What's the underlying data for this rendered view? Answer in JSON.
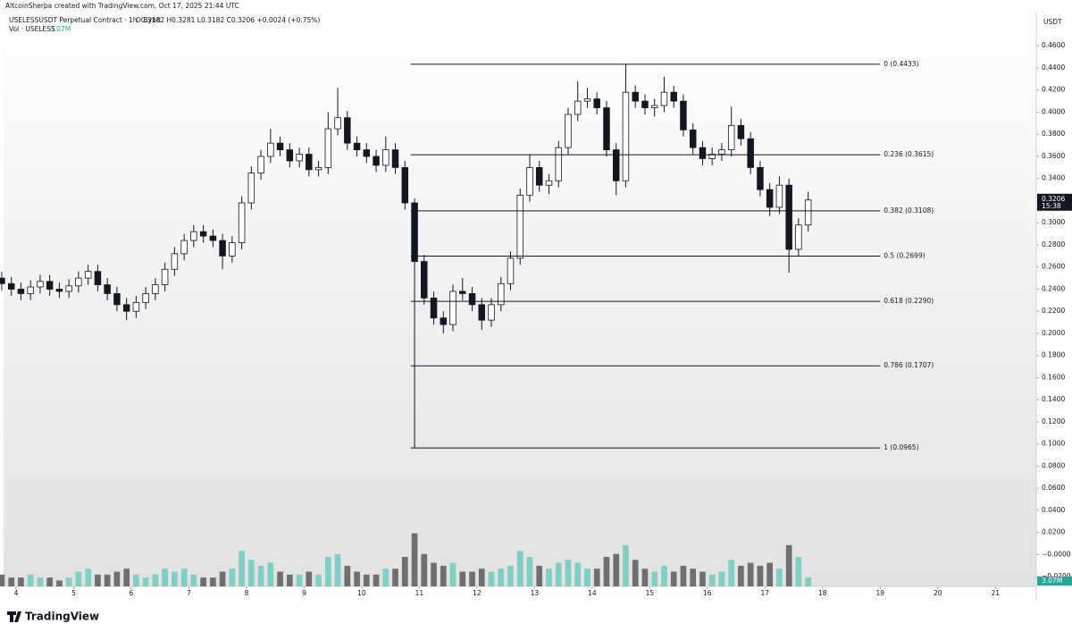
{
  "header": {
    "watermark": "AltcoinSherpa created with TradingView.com, Oct 17, 2025 21:44 UTC",
    "symbol": "USELESSUSDT Perpetual Contract · 1h · Bybit",
    "ohlc": "O0.3182 H0.3281 L0.3182 C0.3206 +0.0024 (+0.75%)",
    "volume_title": "Vol · USELESS"
  },
  "footer": {
    "logo": "TradingView"
  },
  "chart_data": {
    "type": "candlestick",
    "axis_title": "USDT",
    "countdown": "15:38",
    "volume_label": "3.07M",
    "x": [
      3.75,
      3.917,
      4.083,
      4.25,
      4.417,
      4.583,
      4.75,
      4.917,
      5.083,
      5.25,
      5.417,
      5.583,
      5.75,
      5.917,
      6.083,
      6.25,
      6.417,
      6.583,
      6.75,
      6.917,
      7.083,
      7.25,
      7.417,
      7.583,
      7.75,
      7.917,
      8.083,
      8.25,
      8.417,
      8.583,
      8.75,
      8.917,
      9.083,
      9.25,
      9.417,
      9.583,
      9.75,
      9.917,
      10.083,
      10.25,
      10.417,
      10.583,
      10.75,
      10.917,
      11.083,
      11.25,
      11.417,
      11.583,
      11.75,
      11.917,
      12.083,
      12.25,
      12.417,
      12.583,
      12.75,
      12.917,
      13.083,
      13.25,
      13.417,
      13.583,
      13.75,
      13.917,
      14.083,
      14.25,
      14.417,
      14.583,
      14.75,
      14.917,
      15.083,
      15.25,
      15.417,
      15.583,
      15.75,
      15.917,
      16.083,
      16.25,
      16.417,
      16.583,
      16.75,
      16.917,
      17.083,
      17.25,
      17.417,
      17.583,
      17.75
    ],
    "open": [
      0.25,
      0.245,
      0.24,
      0.236,
      0.242,
      0.247,
      0.24,
      0.238,
      0.243,
      0.25,
      0.256,
      0.244,
      0.236,
      0.226,
      0.22,
      0.228,
      0.236,
      0.244,
      0.258,
      0.272,
      0.284,
      0.292,
      0.288,
      0.284,
      0.27,
      0.282,
      0.318,
      0.345,
      0.36,
      0.372,
      0.366,
      0.356,
      0.362,
      0.348,
      0.35,
      0.385,
      0.395,
      0.372,
      0.366,
      0.36,
      0.352,
      0.366,
      0.35,
      0.318,
      0.265,
      0.232,
      0.214,
      0.208,
      0.238,
      0.236,
      0.226,
      0.212,
      0.226,
      0.245,
      0.268,
      0.325,
      0.35,
      0.334,
      0.338,
      0.368,
      0.398,
      0.41,
      0.412,
      0.404,
      0.366,
      0.338,
      0.418,
      0.41,
      0.404,
      0.406,
      0.418,
      0.41,
      0.384,
      0.368,
      0.358,
      0.362,
      0.366,
      0.388,
      0.376,
      0.35,
      0.33,
      0.314,
      0.334,
      0.276,
      0.298
    ],
    "high": [
      0.256,
      0.251,
      0.246,
      0.248,
      0.253,
      0.253,
      0.246,
      0.249,
      0.256,
      0.262,
      0.262,
      0.25,
      0.242,
      0.232,
      0.234,
      0.242,
      0.25,
      0.264,
      0.278,
      0.29,
      0.298,
      0.298,
      0.294,
      0.29,
      0.288,
      0.324,
      0.351,
      0.366,
      0.385,
      0.378,
      0.372,
      0.368,
      0.368,
      0.356,
      0.4,
      0.422,
      0.401,
      0.378,
      0.372,
      0.366,
      0.378,
      0.372,
      0.356,
      0.322,
      0.271,
      0.238,
      0.22,
      0.244,
      0.25,
      0.242,
      0.232,
      0.232,
      0.251,
      0.274,
      0.331,
      0.362,
      0.356,
      0.344,
      0.374,
      0.404,
      0.428,
      0.422,
      0.418,
      0.41,
      0.372,
      0.4433,
      0.424,
      0.416,
      0.412,
      0.432,
      0.424,
      0.416,
      0.39,
      0.374,
      0.368,
      0.372,
      0.405,
      0.394,
      0.382,
      0.356,
      0.336,
      0.342,
      0.34,
      0.304,
      0.3281
    ],
    "low": [
      0.239,
      0.234,
      0.23,
      0.23,
      0.236,
      0.234,
      0.232,
      0.232,
      0.237,
      0.244,
      0.238,
      0.23,
      0.22,
      0.212,
      0.214,
      0.222,
      0.23,
      0.238,
      0.252,
      0.266,
      0.278,
      0.282,
      0.278,
      0.258,
      0.264,
      0.276,
      0.312,
      0.339,
      0.354,
      0.36,
      0.35,
      0.35,
      0.342,
      0.342,
      0.344,
      0.379,
      0.366,
      0.36,
      0.354,
      0.346,
      0.346,
      0.344,
      0.312,
      0.0965,
      0.226,
      0.208,
      0.2,
      0.202,
      0.23,
      0.22,
      0.203,
      0.206,
      0.22,
      0.239,
      0.262,
      0.319,
      0.328,
      0.326,
      0.332,
      0.362,
      0.392,
      0.404,
      0.398,
      0.36,
      0.325,
      0.332,
      0.404,
      0.398,
      0.396,
      0.4,
      0.404,
      0.378,
      0.362,
      0.352,
      0.352,
      0.356,
      0.36,
      0.37,
      0.344,
      0.324,
      0.306,
      0.308,
      0.255,
      0.27,
      0.292
    ],
    "close": [
      0.245,
      0.24,
      0.236,
      0.242,
      0.247,
      0.24,
      0.238,
      0.243,
      0.25,
      0.256,
      0.244,
      0.236,
      0.226,
      0.22,
      0.228,
      0.236,
      0.244,
      0.258,
      0.272,
      0.284,
      0.292,
      0.288,
      0.284,
      0.27,
      0.282,
      0.318,
      0.345,
      0.36,
      0.372,
      0.366,
      0.356,
      0.362,
      0.348,
      0.35,
      0.385,
      0.395,
      0.372,
      0.366,
      0.36,
      0.352,
      0.366,
      0.35,
      0.318,
      0.265,
      0.232,
      0.214,
      0.208,
      0.238,
      0.236,
      0.226,
      0.212,
      0.226,
      0.245,
      0.268,
      0.325,
      0.35,
      0.334,
      0.338,
      0.368,
      0.398,
      0.41,
      0.412,
      0.404,
      0.366,
      0.338,
      0.418,
      0.41,
      0.404,
      0.406,
      0.418,
      0.41,
      0.384,
      0.368,
      0.358,
      0.362,
      0.366,
      0.388,
      0.376,
      0.35,
      0.33,
      0.314,
      0.334,
      0.276,
      0.298,
      0.3206
    ],
    "volume": [
      4,
      3,
      3,
      4,
      3,
      3,
      2,
      3,
      5,
      6,
      4,
      4,
      5,
      6,
      4,
      3,
      4,
      6,
      5,
      6,
      4,
      3,
      3,
      5,
      6,
      12,
      9,
      7,
      8,
      5,
      4,
      4,
      5,
      4,
      10,
      11,
      7,
      5,
      4,
      4,
      6,
      6,
      10,
      18,
      11,
      8,
      7,
      8,
      5,
      5,
      6,
      5,
      6,
      7,
      12,
      10,
      7,
      6,
      8,
      9,
      8,
      6,
      6,
      10,
      11,
      14,
      9,
      6,
      5,
      7,
      5,
      7,
      6,
      5,
      4,
      5,
      9,
      7,
      8,
      7,
      8,
      6,
      14,
      10,
      3.07
    ],
    "vlim": [
      0,
      20
    ],
    "colors": {
      "up": "#ffffff",
      "down": "#131722",
      "outline": "#131722",
      "vol_up": "#7fcfc4",
      "vol_down": "#6f6f6f",
      "tag": "#131722",
      "vol_tag": "#26a69a"
    },
    "xlim": [
      3.72,
      21.71
    ],
    "xticks": [
      4,
      5,
      6,
      7,
      8,
      9,
      10,
      11,
      12,
      13,
      14,
      15,
      16,
      17,
      18,
      19,
      20,
      21
    ],
    "ylim": [
      -0.0287,
      0.4901
    ],
    "yticks": [
      {
        "value": 0.46,
        "label": "0.4600"
      },
      {
        "value": 0.44,
        "label": "0.4400"
      },
      {
        "value": 0.42,
        "label": "0.4200"
      },
      {
        "value": 0.4,
        "label": "0.4000"
      },
      {
        "value": 0.38,
        "label": "0.3800"
      },
      {
        "value": 0.36,
        "label": "0.3600"
      },
      {
        "value": 0.34,
        "label": "0.3400"
      },
      {
        "value": 0.3,
        "label": "0.3000"
      },
      {
        "value": 0.28,
        "label": "0.2800"
      },
      {
        "value": 0.26,
        "label": "0.2600"
      },
      {
        "value": 0.24,
        "label": "0.2400"
      },
      {
        "value": 0.22,
        "label": "0.2200"
      },
      {
        "value": 0.2,
        "label": "0.2000"
      },
      {
        "value": 0.18,
        "label": "0.1800"
      },
      {
        "value": 0.16,
        "label": "0.1600"
      },
      {
        "value": 0.14,
        "label": "0.1400"
      },
      {
        "value": 0.12,
        "label": "0.1200"
      },
      {
        "value": 0.1,
        "label": "0.1000"
      },
      {
        "value": 0.08,
        "label": "0.0800"
      },
      {
        "value": 0.06,
        "label": "0.0600"
      },
      {
        "value": 0.04,
        "label": "0.0400"
      },
      {
        "value": 0.02,
        "label": "0.0200"
      },
      {
        "value": 0,
        "label": "−0.0000"
      },
      {
        "value": -0.02,
        "label": "−0.0200"
      }
    ],
    "fib": {
      "x": [
        10.85,
        19.0
      ],
      "levels": [
        {
          "label": "0 (0.4433)",
          "price": 0.4433
        },
        {
          "label": "0.236 (0.3615)",
          "price": 0.3615
        },
        {
          "label": "0.382 (0.3108)",
          "price": 0.3108
        },
        {
          "label": "0.5 (0.2699)",
          "price": 0.2699
        },
        {
          "label": "0.618 (0.2290)",
          "price": 0.229
        },
        {
          "label": "0.786 (0.1707)",
          "price": 0.1707
        },
        {
          "label": "1 (0.0965)",
          "price": 0.0965
        }
      ]
    }
  }
}
